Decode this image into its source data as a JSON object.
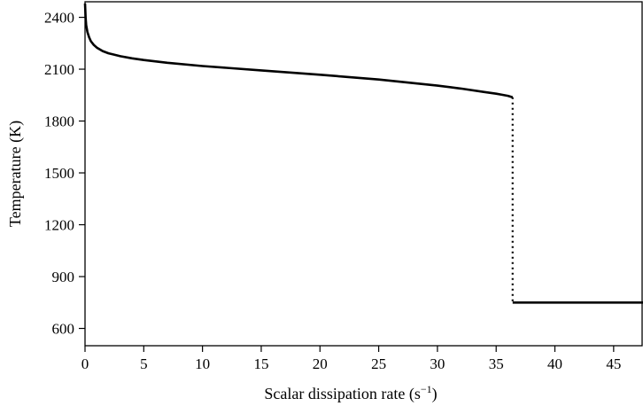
{
  "chart_data": {
    "type": "line",
    "xlabel": "Scalar dissipation rate (s",
    "xlabel_exponent": "−1",
    "xlabel_suffix": ")",
    "ylabel": "Temperature (K)",
    "xlim": [
      0,
      47.5
    ],
    "ylim": [
      500,
      2490
    ],
    "xticks": [
      0,
      5,
      10,
      15,
      20,
      25,
      30,
      35,
      40,
      45
    ],
    "yticks": [
      600,
      900,
      1200,
      1500,
      1800,
      2100,
      2400
    ],
    "grid": false,
    "legend": "none",
    "line_color": "#000000",
    "series": [
      {
        "style": "solid",
        "x": [
          0,
          0.05,
          0.1,
          0.2,
          0.35,
          0.5,
          0.75,
          1,
          1.5,
          2,
          3,
          4,
          5,
          7,
          10,
          15,
          20,
          25,
          30,
          32,
          34,
          35,
          35.5,
          36,
          36.4
        ],
        "y": [
          2480,
          2395,
          2355,
          2315,
          2285,
          2262,
          2240,
          2225,
          2205,
          2192,
          2175,
          2163,
          2153,
          2137,
          2118,
          2093,
          2068,
          2040,
          2005,
          1988,
          1968,
          1958,
          1952,
          1946,
          1937
        ]
      },
      {
        "style": "dotted",
        "x": [
          36.4,
          36.4
        ],
        "y": [
          1937,
          750
        ]
      },
      {
        "style": "solid",
        "x": [
          36.4,
          47.5
        ],
        "y": [
          750,
          750
        ]
      }
    ]
  }
}
